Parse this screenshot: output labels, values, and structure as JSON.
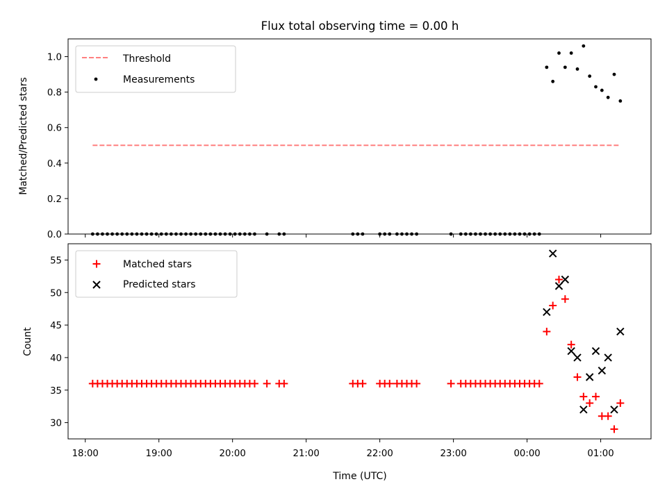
{
  "title": "Flux total observing time = 0.00 h",
  "colors": {
    "threshold": "#ff7f7f",
    "measurements": "#000000",
    "matched": "#ff0000",
    "predicted": "#000000"
  },
  "top": {
    "ylabel": "Matched/Predicted stars",
    "yticks": [
      "0.0",
      "0.2",
      "0.4",
      "0.6",
      "0.8",
      "1.0"
    ],
    "legend": {
      "threshold": "Threshold",
      "measurements": "Measurements"
    }
  },
  "bottom": {
    "ylabel": "Count",
    "xlabel": "Time (UTC)",
    "yticks": [
      "30",
      "35",
      "40",
      "45",
      "50",
      "55"
    ],
    "legend": {
      "matched": "Matched stars",
      "predicted": "Predicted stars"
    }
  },
  "xticks": [
    "18:00",
    "19:00",
    "20:00",
    "21:00",
    "22:00",
    "23:00",
    "00:00",
    "01:00"
  ],
  "chart_data": [
    {
      "type": "scatter",
      "title": "Flux total observing time = 0.00 h",
      "xlabel": "",
      "ylabel": "Matched/Predicted stars",
      "x_axis": "Time (UTC)",
      "xlim": [
        "17:46",
        "01:41"
      ],
      "ylim": [
        0,
        1.1
      ],
      "grid": false,
      "legend": "top-left",
      "threshold": {
        "name": "Threshold",
        "y": 0.5,
        "x": [
          "18:06",
          "01:16"
        ],
        "style": "dashed"
      },
      "series": [
        {
          "name": "Measurements",
          "points": [
            [
              "18:06",
              0
            ],
            [
              "18:10",
              0
            ],
            [
              "18:14",
              0
            ],
            [
              "18:18",
              0
            ],
            [
              "18:22",
              0
            ],
            [
              "18:26",
              0
            ],
            [
              "18:30",
              0
            ],
            [
              "18:34",
              0
            ],
            [
              "18:38",
              0
            ],
            [
              "18:42",
              0
            ],
            [
              "18:46",
              0
            ],
            [
              "18:50",
              0
            ],
            [
              "18:54",
              0
            ],
            [
              "18:58",
              0
            ],
            [
              "19:02",
              0
            ],
            [
              "19:06",
              0
            ],
            [
              "19:10",
              0
            ],
            [
              "19:14",
              0
            ],
            [
              "19:18",
              0
            ],
            [
              "19:22",
              0
            ],
            [
              "19:26",
              0
            ],
            [
              "19:30",
              0
            ],
            [
              "19:34",
              0
            ],
            [
              "19:38",
              0
            ],
            [
              "19:42",
              0
            ],
            [
              "19:46",
              0
            ],
            [
              "19:50",
              0
            ],
            [
              "19:54",
              0
            ],
            [
              "19:58",
              0
            ],
            [
              "20:02",
              0
            ],
            [
              "20:06",
              0
            ],
            [
              "20:10",
              0
            ],
            [
              "20:14",
              0
            ],
            [
              "20:18",
              0
            ],
            [
              "20:28",
              0
            ],
            [
              "20:38",
              0
            ],
            [
              "20:42",
              0
            ],
            [
              "21:38",
              0
            ],
            [
              "21:42",
              0
            ],
            [
              "21:46",
              0
            ],
            [
              "22:00",
              0
            ],
            [
              "22:04",
              0
            ],
            [
              "22:08",
              0
            ],
            [
              "22:14",
              0
            ],
            [
              "22:18",
              0
            ],
            [
              "22:22",
              0
            ],
            [
              "22:26",
              0
            ],
            [
              "22:30",
              0
            ],
            [
              "22:58",
              0
            ],
            [
              "23:06",
              0
            ],
            [
              "23:10",
              0
            ],
            [
              "23:14",
              0
            ],
            [
              "23:18",
              0
            ],
            [
              "23:22",
              0
            ],
            [
              "23:26",
              0
            ],
            [
              "23:30",
              0
            ],
            [
              "23:34",
              0
            ],
            [
              "23:38",
              0
            ],
            [
              "23:42",
              0
            ],
            [
              "23:46",
              0
            ],
            [
              "23:50",
              0
            ],
            [
              "23:54",
              0
            ],
            [
              "23:58",
              0
            ],
            [
              "00:02",
              0
            ],
            [
              "00:06",
              0
            ],
            [
              "00:10",
              0
            ],
            [
              "00:16",
              0.94
            ],
            [
              "00:21",
              0.86
            ],
            [
              "00:26",
              1.02
            ],
            [
              "00:31",
              0.94
            ],
            [
              "00:36",
              1.02
            ],
            [
              "00:41",
              0.93
            ],
            [
              "00:46",
              1.06
            ],
            [
              "00:51",
              0.89
            ],
            [
              "00:56",
              0.83
            ],
            [
              "01:01",
              0.81
            ],
            [
              "01:06",
              0.77
            ],
            [
              "01:11",
              0.9
            ],
            [
              "01:16",
              0.75
            ]
          ]
        }
      ]
    },
    {
      "type": "scatter",
      "title": "",
      "xlabel": "Time (UTC)",
      "ylabel": "Count",
      "xlim": [
        "17:46",
        "01:41"
      ],
      "ylim": [
        27.5,
        57.5
      ],
      "grid": false,
      "legend": "top-left",
      "series": [
        {
          "name": "Matched stars",
          "points": [
            [
              "18:06",
              36
            ],
            [
              "18:10",
              36
            ],
            [
              "18:14",
              36
            ],
            [
              "18:18",
              36
            ],
            [
              "18:22",
              36
            ],
            [
              "18:26",
              36
            ],
            [
              "18:30",
              36
            ],
            [
              "18:34",
              36
            ],
            [
              "18:38",
              36
            ],
            [
              "18:42",
              36
            ],
            [
              "18:46",
              36
            ],
            [
              "18:50",
              36
            ],
            [
              "18:54",
              36
            ],
            [
              "18:58",
              36
            ],
            [
              "19:02",
              36
            ],
            [
              "19:06",
              36
            ],
            [
              "19:10",
              36
            ],
            [
              "19:14",
              36
            ],
            [
              "19:18",
              36
            ],
            [
              "19:22",
              36
            ],
            [
              "19:26",
              36
            ],
            [
              "19:30",
              36
            ],
            [
              "19:34",
              36
            ],
            [
              "19:38",
              36
            ],
            [
              "19:42",
              36
            ],
            [
              "19:46",
              36
            ],
            [
              "19:50",
              36
            ],
            [
              "19:54",
              36
            ],
            [
              "19:58",
              36
            ],
            [
              "20:02",
              36
            ],
            [
              "20:06",
              36
            ],
            [
              "20:10",
              36
            ],
            [
              "20:14",
              36
            ],
            [
              "20:18",
              36
            ],
            [
              "20:28",
              36
            ],
            [
              "20:38",
              36
            ],
            [
              "20:42",
              36
            ],
            [
              "21:38",
              36
            ],
            [
              "21:42",
              36
            ],
            [
              "21:46",
              36
            ],
            [
              "22:00",
              36
            ],
            [
              "22:04",
              36
            ],
            [
              "22:08",
              36
            ],
            [
              "22:14",
              36
            ],
            [
              "22:18",
              36
            ],
            [
              "22:22",
              36
            ],
            [
              "22:26",
              36
            ],
            [
              "22:30",
              36
            ],
            [
              "22:58",
              36
            ],
            [
              "23:06",
              36
            ],
            [
              "23:10",
              36
            ],
            [
              "23:14",
              36
            ],
            [
              "23:18",
              36
            ],
            [
              "23:22",
              36
            ],
            [
              "23:26",
              36
            ],
            [
              "23:30",
              36
            ],
            [
              "23:34",
              36
            ],
            [
              "23:38",
              36
            ],
            [
              "23:42",
              36
            ],
            [
              "23:46",
              36
            ],
            [
              "23:50",
              36
            ],
            [
              "23:54",
              36
            ],
            [
              "23:58",
              36
            ],
            [
              "00:02",
              36
            ],
            [
              "00:06",
              36
            ],
            [
              "00:10",
              36
            ],
            [
              "00:16",
              44
            ],
            [
              "00:21",
              48
            ],
            [
              "00:26",
              52
            ],
            [
              "00:31",
              49
            ],
            [
              "00:36",
              42
            ],
            [
              "00:41",
              37
            ],
            [
              "00:46",
              34
            ],
            [
              "00:51",
              33
            ],
            [
              "00:56",
              34
            ],
            [
              "01:01",
              31
            ],
            [
              "01:06",
              31
            ],
            [
              "01:11",
              29
            ],
            [
              "01:16",
              33
            ]
          ]
        },
        {
          "name": "Predicted stars",
          "points": [
            [
              "00:16",
              47
            ],
            [
              "00:21",
              56
            ],
            [
              "00:26",
              51
            ],
            [
              "00:31",
              52
            ],
            [
              "00:36",
              41
            ],
            [
              "00:41",
              40
            ],
            [
              "00:46",
              32
            ],
            [
              "00:51",
              37
            ],
            [
              "00:56",
              41
            ],
            [
              "01:01",
              38
            ],
            [
              "01:06",
              40
            ],
            [
              "01:11",
              32
            ],
            [
              "01:16",
              44
            ]
          ]
        }
      ]
    }
  ]
}
